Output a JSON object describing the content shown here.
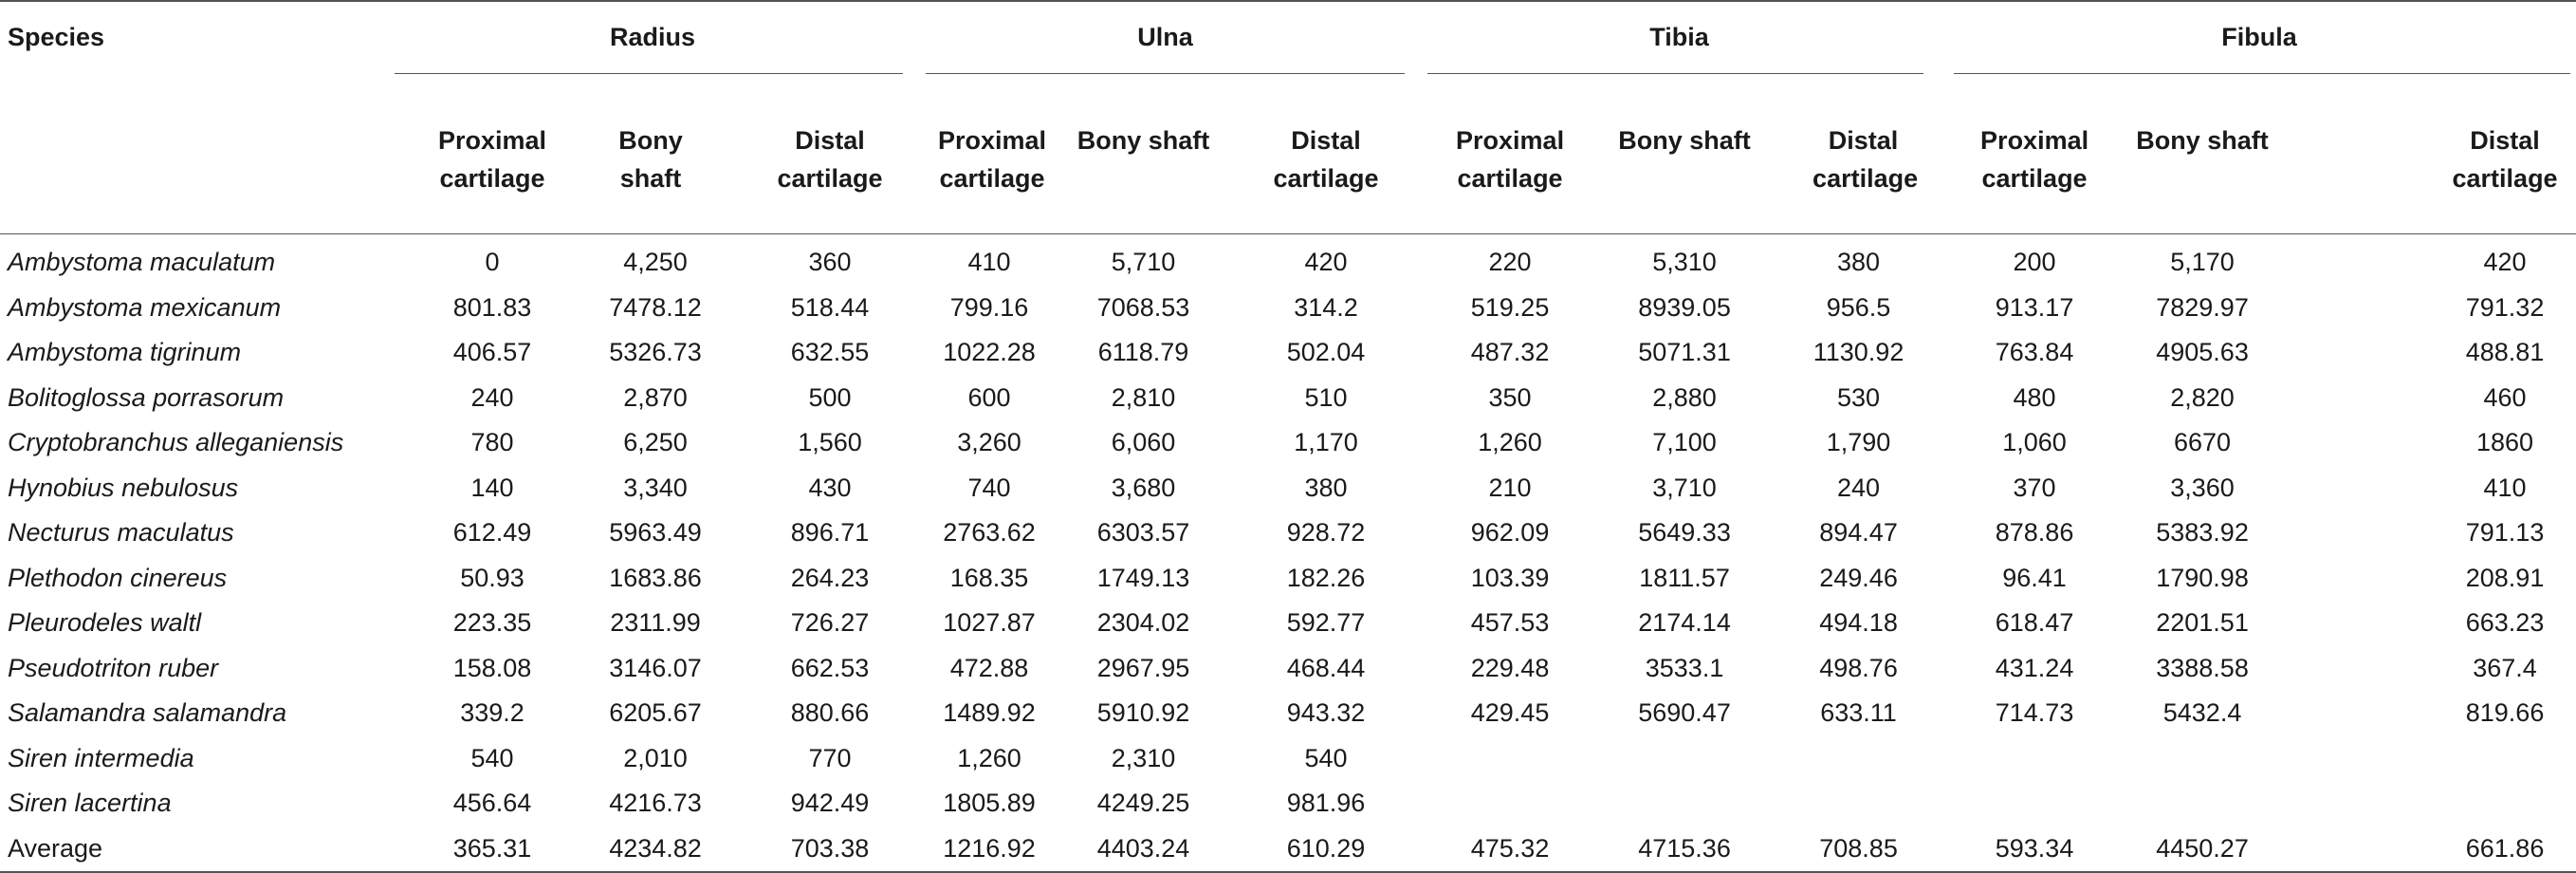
{
  "header": {
    "species_label": "Species",
    "groups": [
      "Radius",
      "Ulna",
      "Tibia",
      "Fibula"
    ],
    "subcolumns": [
      "Proximal cartilage",
      "Bony shaft",
      "Distal cartilage",
      "Proximal cartilage",
      "Bony shaft",
      "Distal cartilage",
      "Proximal cartilage",
      "Bony shaft",
      "Distal cartilage",
      "Proximal cartilage",
      "Bony shaft",
      "Distal cartilage"
    ]
  },
  "rows": [
    {
      "species": "Ambystoma maculatum",
      "values": [
        "0",
        "4,250",
        "360",
        "410",
        "5,710",
        "420",
        "220",
        "5,310",
        "380",
        "200",
        "5,170",
        "420"
      ]
    },
    {
      "species": "Ambystoma mexicanum",
      "values": [
        "801.83",
        "7478.12",
        "518.44",
        "799.16",
        "7068.53",
        "314.2",
        "519.25",
        "8939.05",
        "956.5",
        "913.17",
        "7829.97",
        "791.32"
      ]
    },
    {
      "species": "Ambystoma tigrinum",
      "values": [
        "406.57",
        "5326.73",
        "632.55",
        "1022.28",
        "6118.79",
        "502.04",
        "487.32",
        "5071.31",
        "1130.92",
        "763.84",
        "4905.63",
        "488.81"
      ]
    },
    {
      "species": "Bolitoglossa porrasorum",
      "values": [
        "240",
        "2,870",
        "500",
        "600",
        "2,810",
        "510",
        "350",
        "2,880",
        "530",
        "480",
        "2,820",
        "460"
      ]
    },
    {
      "species": "Cryptobranchus alleganiensis",
      "values": [
        "780",
        "6,250",
        "1,560",
        "3,260",
        "6,060",
        "1,170",
        "1,260",
        "7,100",
        "1,790",
        "1,060",
        "6670",
        "1860"
      ]
    },
    {
      "species": "Hynobius nebulosus",
      "values": [
        "140",
        "3,340",
        "430",
        "740",
        "3,680",
        "380",
        "210",
        "3,710",
        "240",
        "370",
        "3,360",
        "410"
      ]
    },
    {
      "species": "Necturus maculatus",
      "values": [
        "612.49",
        "5963.49",
        "896.71",
        "2763.62",
        "6303.57",
        "928.72",
        "962.09",
        "5649.33",
        "894.47",
        "878.86",
        "5383.92",
        "791.13"
      ]
    },
    {
      "species": "Plethodon cinereus",
      "values": [
        "50.93",
        "1683.86",
        "264.23",
        "168.35",
        "1749.13",
        "182.26",
        "103.39",
        "1811.57",
        "249.46",
        "96.41",
        "1790.98",
        "208.91"
      ]
    },
    {
      "species": "Pleurodeles waltl",
      "values": [
        "223.35",
        "2311.99",
        "726.27",
        "1027.87",
        "2304.02",
        "592.77",
        "457.53",
        "2174.14",
        "494.18",
        "618.47",
        "2201.51",
        "663.23"
      ]
    },
    {
      "species": "Pseudotriton ruber",
      "values": [
        "158.08",
        "3146.07",
        "662.53",
        "472.88",
        "2967.95",
        "468.44",
        "229.48",
        "3533.1",
        "498.76",
        "431.24",
        "3388.58",
        "367.4"
      ]
    },
    {
      "species": "Salamandra salamandra",
      "values": [
        "339.2",
        "6205.67",
        "880.66",
        "1489.92",
        "5910.92",
        "943.32",
        "429.45",
        "5690.47",
        "633.11",
        "714.73",
        "5432.4",
        "819.66"
      ]
    },
    {
      "species": "Siren intermedia",
      "values": [
        "540",
        "2,010",
        "770",
        "1,260",
        "2,310",
        "540",
        "",
        "",
        "",
        "",
        "",
        ""
      ]
    },
    {
      "species": "Siren lacertina",
      "values": [
        "456.64",
        "4216.73",
        "942.49",
        "1805.89",
        "4249.25",
        "981.96",
        "",
        "",
        "",
        "",
        "",
        ""
      ]
    },
    {
      "species": "Average",
      "values": [
        "365.31",
        "4234.82",
        "703.38",
        "1216.92",
        "4403.24",
        "610.29",
        "475.32",
        "4715.36",
        "708.85",
        "593.34",
        "4450.27",
        "661.86"
      ]
    }
  ]
}
